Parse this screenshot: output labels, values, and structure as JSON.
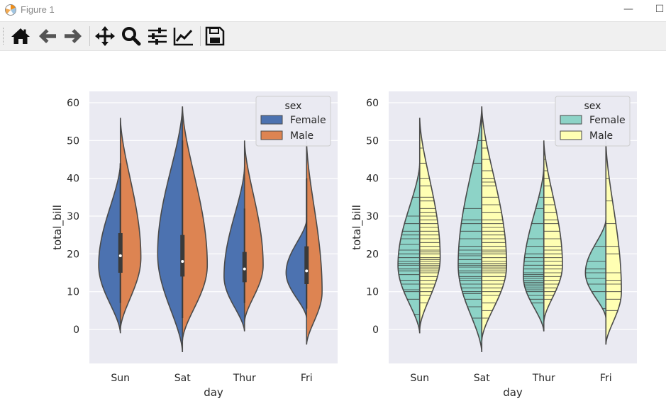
{
  "window": {
    "title": "Figure 1",
    "minimize_glyph": "—",
    "maximize_glyph": "☐"
  },
  "toolbar": {
    "buttons": [
      {
        "name": "home-icon"
      },
      {
        "name": "back-arrow-icon"
      },
      {
        "name": "forward-arrow-icon"
      },
      {
        "name": "pan-move-icon"
      },
      {
        "name": "zoom-magnifier-icon"
      },
      {
        "name": "configure-subplots-icon"
      },
      {
        "name": "edit-axis-lines-icon"
      },
      {
        "name": "save-floppy-icon"
      }
    ]
  },
  "chart_data": [
    {
      "type": "violin",
      "split": true,
      "inner": "box",
      "xlabel": "day",
      "ylabel": "total_bill",
      "categories": [
        "Sun",
        "Sat",
        "Thur",
        "Fri"
      ],
      "ylim": [
        -9,
        63
      ],
      "yticks": [
        0,
        10,
        20,
        30,
        40,
        50,
        60
      ],
      "legend": {
        "title": "sex",
        "position": "top-right",
        "entries": [
          "Female",
          "Male"
        ]
      },
      "colors": {
        "Female": "#4c72b0",
        "Male": "#dd8452"
      },
      "series": [
        {
          "name": "Female",
          "color": "#4c72b0",
          "violins": [
            {
              "day": "Sun",
              "min": -1,
              "max": 44,
              "mode": 17,
              "width": 0.35
            },
            {
              "day": "Sat",
              "min": -6,
              "max": 59,
              "mode": 20,
              "width": 0.4
            },
            {
              "day": "Thur",
              "min": -0.5,
              "max": 43,
              "mode": 14,
              "width": 0.33
            },
            {
              "day": "Fri",
              "min": 3,
              "max": 29,
              "mode": 15,
              "width": 0.33
            }
          ]
        },
        {
          "name": "Male",
          "color": "#dd8452",
          "violins": [
            {
              "day": "Sun",
              "min": 0,
              "max": 56,
              "mode": 19,
              "width": 0.33
            },
            {
              "day": "Sat",
              "min": -3,
              "max": 59,
              "mode": 17,
              "width": 0.4
            },
            {
              "day": "Thur",
              "min": 2,
              "max": 50,
              "mode": 17,
              "width": 0.3
            },
            {
              "day": "Fri",
              "min": -4,
              "max": 50,
              "mode": 10,
              "width": 0.25
            }
          ]
        }
      ],
      "box": [
        {
          "day": "Sun",
          "q1": 15,
          "median": 19.5,
          "q3": 25.5,
          "lo": 7,
          "hi": 44
        },
        {
          "day": "Sat",
          "q1": 14,
          "median": 18,
          "q3": 25,
          "lo": 3,
          "hi": 50
        },
        {
          "day": "Thur",
          "q1": 12.5,
          "median": 16,
          "q3": 20.5,
          "lo": 7,
          "hi": 32
        },
        {
          "day": "Fri",
          "q1": 12,
          "median": 15.5,
          "q3": 22,
          "lo": 5.5,
          "hi": 40
        }
      ]
    },
    {
      "type": "violin",
      "split": true,
      "inner": "stick",
      "xlabel": "day",
      "ylabel": "total_bill",
      "categories": [
        "Sun",
        "Sat",
        "Thur",
        "Fri"
      ],
      "ylim": [
        -9,
        63
      ],
      "yticks": [
        0,
        10,
        20,
        30,
        40,
        50,
        60
      ],
      "legend": {
        "title": "sex",
        "position": "top-right",
        "entries": [
          "Female",
          "Male"
        ]
      },
      "colors": {
        "Female": "#8dd3c7",
        "Male": "#ffffb3"
      },
      "series": [
        {
          "name": "Female",
          "color": "#8dd3c7",
          "violins": [
            {
              "day": "Sun",
              "min": -1,
              "max": 44,
              "mode": 17,
              "width": 0.35
            },
            {
              "day": "Sat",
              "min": -6,
              "max": 59,
              "mode": 17,
              "width": 0.38
            },
            {
              "day": "Thur",
              "min": -0.5,
              "max": 43,
              "mode": 14,
              "width": 0.33
            },
            {
              "day": "Fri",
              "min": 3,
              "max": 29,
              "mode": 15,
              "width": 0.33
            }
          ],
          "sticks": [
            [
              4,
              8,
              10,
              10.5,
              12,
              13,
              14.5,
              15.5,
              16,
              17,
              17.5,
              18,
              19,
              20,
              21,
              22.5,
              24,
              25,
              26,
              28,
              30,
              35
            ],
            [
              3,
              6,
              8,
              9.5,
              10,
              11,
              12,
              13,
              13.5,
              14,
              15,
              15.5,
              16.5,
              17,
              17.5,
              18.5,
              19.5,
              20,
              21,
              22,
              24,
              26,
              28,
              29,
              32,
              44,
              50
            ],
            [
              7,
              8,
              9,
              10,
              10.5,
              11,
              11.5,
              12,
              12.5,
              13,
              13.5,
              14,
              14.5,
              15,
              16,
              17,
              18,
              19,
              20,
              22,
              24,
              28,
              32,
              35,
              43
            ],
            [
              5.5,
              10,
              12,
              13.5,
              15,
              16,
              18,
              22,
              28
            ]
          ]
        },
        {
          "name": "Male",
          "color": "#ffffb3",
          "violins": [
            {
              "day": "Sun",
              "min": 0,
              "max": 56,
              "mode": 19,
              "width": 0.33
            },
            {
              "day": "Sat",
              "min": -3,
              "max": 59,
              "mode": 17,
              "width": 0.4
            },
            {
              "day": "Thur",
              "min": 2,
              "max": 50,
              "mode": 17,
              "width": 0.3
            },
            {
              "day": "Fri",
              "min": -4,
              "max": 50,
              "mode": 10,
              "width": 0.25
            }
          ],
          "sticks": [
            [
              7,
              9,
              10,
              11,
              12,
              13,
              14,
              15,
              15.5,
              16,
              16.5,
              17,
              17.5,
              18,
              18.5,
              19,
              20,
              20.5,
              21,
              22,
              23,
              24,
              25,
              26,
              27,
              28,
              29,
              30,
              31,
              32,
              34,
              35,
              38,
              40,
              44,
              48
            ],
            [
              3,
              5,
              7,
              9,
              10,
              11,
              12,
              13,
              14,
              15,
              15.5,
              16,
              16.5,
              17,
              17.5,
              18,
              19,
              20,
              20.5,
              21,
              22,
              23,
              24,
              25,
              26,
              27,
              28,
              29,
              31,
              33,
              35,
              38,
              39,
              40,
              42,
              45,
              48,
              50
            ],
            [
              8,
              9,
              10,
              11,
              12,
              13,
              14,
              15,
              16,
              17,
              18,
              19,
              20,
              21,
              22,
              24,
              26,
              28,
              29,
              31,
              33,
              35,
              38,
              40,
              42,
              45,
              47
            ],
            [
              5,
              8,
              10,
              12,
              13,
              15,
              20,
              22,
              28,
              34,
              40,
              48
            ]
          ]
        }
      ]
    }
  ]
}
